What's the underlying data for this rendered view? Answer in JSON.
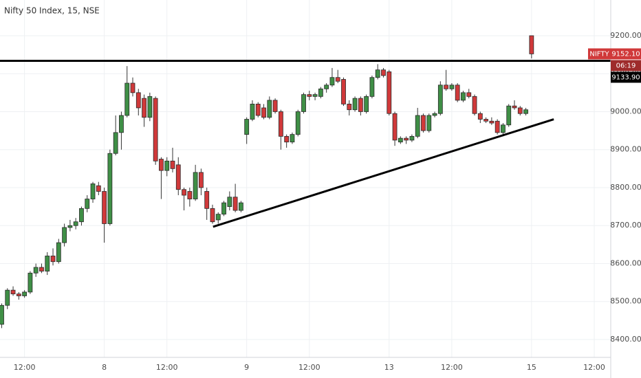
{
  "chart_data": {
    "type": "candlestick",
    "title": "Nifty 50 Index, 15, NSE",
    "symbol": "NIFTY",
    "countdown": "06:19",
    "categories": [
      null,
      null,
      null,
      null,
      "12:00",
      null,
      null,
      null,
      null,
      null,
      null,
      null,
      null,
      null,
      null,
      null,
      null,
      null,
      "8",
      null,
      null,
      null,
      null,
      null,
      null,
      null,
      null,
      null,
      null,
      "12:00",
      null,
      null,
      null,
      null,
      null,
      null,
      null,
      null,
      null,
      null,
      null,
      null,
      null,
      "9",
      null,
      null,
      null,
      null,
      null,
      null,
      null,
      null,
      null,
      null,
      "12:00",
      null,
      null,
      null,
      null,
      null,
      null,
      null,
      null,
      null,
      null,
      null,
      null,
      null,
      "13",
      null,
      null,
      null,
      null,
      null,
      null,
      null,
      null,
      null,
      null,
      "12:00",
      null,
      null,
      null,
      null,
      null,
      null,
      null,
      null,
      null,
      null,
      null,
      null,
      null,
      "15",
      null,
      null,
      null,
      null,
      null,
      null,
      null,
      null,
      null,
      null,
      "12:00"
    ],
    "open": [
      8440,
      8490,
      8530,
      8520,
      8515,
      8525,
      8575,
      8590,
      8580,
      8620,
      8605,
      8655,
      8695,
      8700,
      8710,
      8745,
      8770,
      8805,
      8790,
      8705,
      8890,
      8945,
      8990,
      9075,
      9050,
      9035,
      8985,
      9035,
      8875,
      8845,
      8870,
      8860,
      8795,
      8790,
      8770,
      8840,
      8790,
      8745,
      8715,
      8730,
      8750,
      8775,
      8740,
      8940,
      8980,
      9020,
      9010,
      8985,
      9030,
      9000,
      8935,
      8920,
      8940,
      9000,
      9045,
      9040,
      9040,
      9060,
      9070,
      9090,
      9085,
      9020,
      9005,
      9035,
      9000,
      9040,
      9090,
      9110,
      9105,
      8995,
      8920,
      8930,
      8925,
      8935,
      8990,
      8950,
      8990,
      8995,
      9070,
      9060,
      9070,
      9030,
      9050,
      9040,
      8995,
      8980,
      8975,
      8975,
      8945,
      8965,
      9015,
      9010,
      8995,
      9200,
      null,
      null,
      null,
      null,
      null,
      null,
      null,
      null,
      null,
      null,
      null
    ],
    "high": [
      8495,
      8535,
      8540,
      8525,
      8530,
      8580,
      8600,
      8600,
      8630,
      8640,
      8665,
      8705,
      8715,
      8720,
      8750,
      8780,
      8815,
      8815,
      8800,
      8900,
      8990,
      9000,
      9120,
      9090,
      9060,
      9045,
      9050,
      9040,
      8880,
      8880,
      8905,
      8880,
      8800,
      8800,
      8860,
      8850,
      8800,
      8755,
      8735,
      8765,
      8790,
      8810,
      8765,
      8985,
      9030,
      9025,
      9020,
      9040,
      9035,
      9005,
      8940,
      8945,
      9005,
      9050,
      9055,
      9050,
      9065,
      9075,
      9115,
      9110,
      9090,
      9030,
      9040,
      9040,
      9045,
      9095,
      9125,
      9115,
      9110,
      9000,
      8935,
      8935,
      8940,
      9010,
      8995,
      8995,
      9000,
      9080,
      9110,
      9075,
      9075,
      9055,
      9060,
      9045,
      9000,
      8985,
      8985,
      8980,
      8970,
      9020,
      9030,
      9015,
      9010,
      9200,
      null,
      null,
      null,
      null,
      null,
      null,
      null,
      null,
      null,
      null,
      null
    ],
    "low": [
      8430,
      8480,
      8515,
      8505,
      8510,
      8520,
      8565,
      8575,
      8570,
      8595,
      8600,
      8645,
      8685,
      8690,
      8700,
      8735,
      8760,
      8780,
      8655,
      8700,
      8885,
      8900,
      8985,
      9040,
      8990,
      8960,
      8975,
      8860,
      8770,
      8830,
      8840,
      8780,
      8740,
      8750,
      8765,
      8780,
      8715,
      8705,
      8705,
      8725,
      8740,
      8735,
      8735,
      8915,
      8975,
      8985,
      8980,
      8980,
      8995,
      8900,
      8905,
      8915,
      8935,
      8995,
      9030,
      9030,
      9035,
      9050,
      9065,
      9075,
      9015,
      8990,
      9000,
      8990,
      8995,
      9035,
      9085,
      9090,
      8990,
      8910,
      8915,
      8915,
      8920,
      8930,
      8945,
      8945,
      8985,
      8990,
      9055,
      9055,
      9025,
      9025,
      9035,
      8990,
      8970,
      8970,
      8965,
      8940,
      8935,
      8960,
      9005,
      8990,
      8990,
      9140,
      null,
      null,
      null,
      null,
      null,
      null,
      null,
      null,
      null,
      null,
      null
    ],
    "close": [
      8490,
      8530,
      8520,
      8515,
      8525,
      8575,
      8590,
      8580,
      8620,
      8605,
      8655,
      8695,
      8700,
      8710,
      8745,
      8770,
      8810,
      8790,
      8705,
      8890,
      8945,
      8990,
      9075,
      9050,
      9010,
      8985,
      9040,
      8870,
      8845,
      8870,
      8850,
      8795,
      8780,
      8770,
      8840,
      8800,
      8745,
      8710,
      8730,
      8760,
      8775,
      8740,
      8760,
      8980,
      9020,
      8990,
      8985,
      9030,
      9000,
      8935,
      8920,
      8940,
      9000,
      9045,
      9040,
      9045,
      9060,
      9070,
      9090,
      9080,
      9020,
      9005,
      9035,
      9000,
      9040,
      9090,
      9110,
      9095,
      8995,
      8925,
      8930,
      8925,
      8935,
      8990,
      8950,
      8990,
      8995,
      9070,
      9060,
      9070,
      9030,
      9050,
      9040,
      8995,
      8980,
      8975,
      8970,
      8945,
      8965,
      9015,
      9010,
      8995,
      9005,
      9152.1,
      null,
      null,
      null,
      null,
      null,
      null,
      null,
      null,
      null,
      null,
      null
    ],
    "up_color": "#3f8f46",
    "down_color": "#d0393a",
    "xlim": [
      -0.3,
      106.9
    ],
    "ylim": [
      8362,
      9294
    ],
    "yticks": [
      {
        "value": 8400,
        "label": "8400.00"
      },
      {
        "value": 8500,
        "label": "8500.00"
      },
      {
        "value": 8600,
        "label": "8600.00"
      },
      {
        "value": 8700,
        "label": "8700.00"
      },
      {
        "value": 8800,
        "label": "8800.00"
      },
      {
        "value": 8900,
        "label": "8900.00"
      },
      {
        "value": 9000,
        "label": "9000.00"
      },
      {
        "value": 9100,
        "label": "9100.00"
      },
      {
        "value": 9200,
        "label": "9200.00"
      }
    ],
    "grid": true,
    "last_price": {
      "value": 9152.1,
      "label": "9152.10"
    },
    "hline": {
      "value": 9133.9,
      "label": "9133.90"
    },
    "trendline": {
      "x": [
        37.1,
        96.9
      ],
      "y": [
        8697,
        8980
      ]
    }
  }
}
